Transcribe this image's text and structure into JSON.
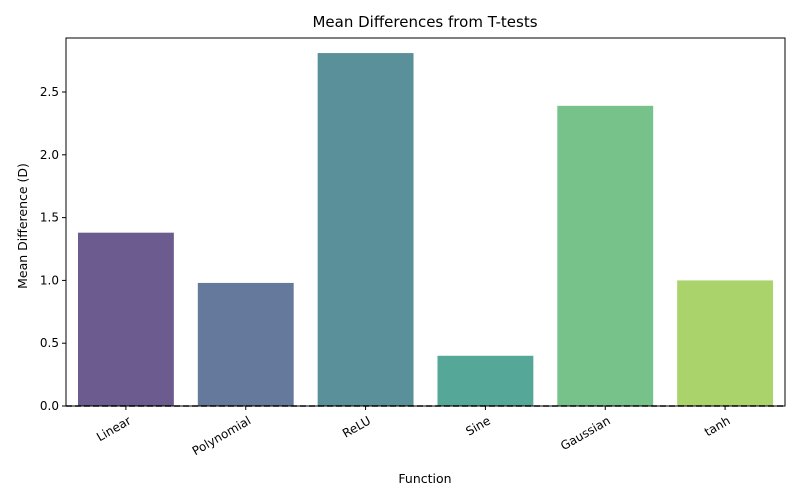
{
  "chart_data": {
    "type": "bar",
    "title": "Mean Differences from T-tests",
    "xlabel": "Function",
    "ylabel": "Mean Difference (D)",
    "categories": [
      "Linear",
      "Polynomial",
      "ReLU",
      "Sine",
      "Gaussian",
      "tanh"
    ],
    "values": [
      1.38,
      0.98,
      2.81,
      0.4,
      2.39,
      1.0
    ],
    "colors": [
      "#6c5b8e",
      "#65799c",
      "#59909a",
      "#55a898",
      "#77c18b",
      "#abd36b"
    ],
    "ylim": [
      0,
      2.93
    ],
    "yticks": [
      "0.0",
      "0.5",
      "1.0",
      "1.5",
      "2.0",
      "2.5"
    ],
    "reference_line": {
      "y": 0,
      "style": "dashed",
      "color": "#000000"
    },
    "grid": false,
    "legend": "none"
  }
}
